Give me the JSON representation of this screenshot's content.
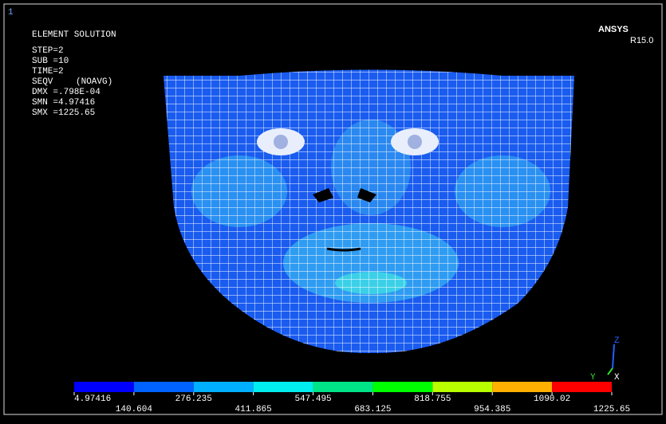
{
  "window_number": "1",
  "info": {
    "title": "ELEMENT SOLUTION",
    "lines": [
      "STEP=2",
      "SUB =10",
      "TIME=2"
    ],
    "item": "SEQV",
    "avg": "(NOAVG)",
    "stats": [
      "DMX =.798E-04",
      "SMN =4.97416",
      "SMX =1225.65"
    ]
  },
  "logo": {
    "name": "ANSYS",
    "release": "R15.0"
  },
  "triad": {
    "z": "Z",
    "y": "Y",
    "x": "X"
  },
  "legend": {
    "colors": [
      "#0000ff",
      "#0062ff",
      "#00b0ff",
      "#00eeee",
      "#00e488",
      "#00ff00",
      "#b8ff00",
      "#ffb000",
      "#ff0000"
    ],
    "labels": [
      4.97416,
      140.604,
      276.235,
      411.865,
      547.495,
      683.125,
      818.755,
      954.385,
      1090.02,
      1225.65
    ]
  }
}
